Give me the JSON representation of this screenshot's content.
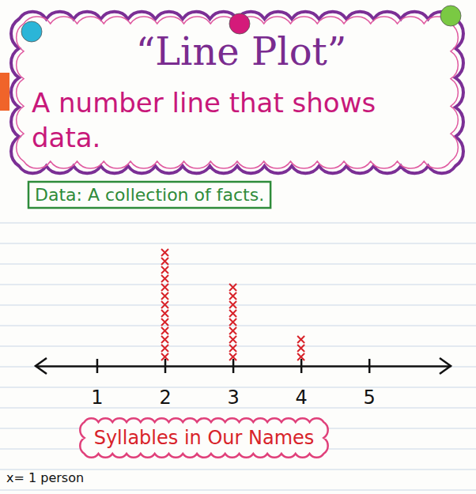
{
  "chart_data": {
    "type": "dot",
    "title": "“Line Plot”",
    "subtitle": "A number line that shows data.",
    "annotations": [
      "Data: A collection of facts.",
      "x= 1 person"
    ],
    "x": [
      1,
      2,
      3,
      4,
      5
    ],
    "values": [
      0,
      13,
      9,
      3,
      0
    ],
    "xlim": [
      0.1,
      6.2
    ],
    "xticks": [
      1,
      2,
      3,
      4,
      5
    ],
    "x_label": "Syllables in Our Names",
    "marker": "x",
    "color": "#d8232a",
    "tick_labels": "x"
  }
}
